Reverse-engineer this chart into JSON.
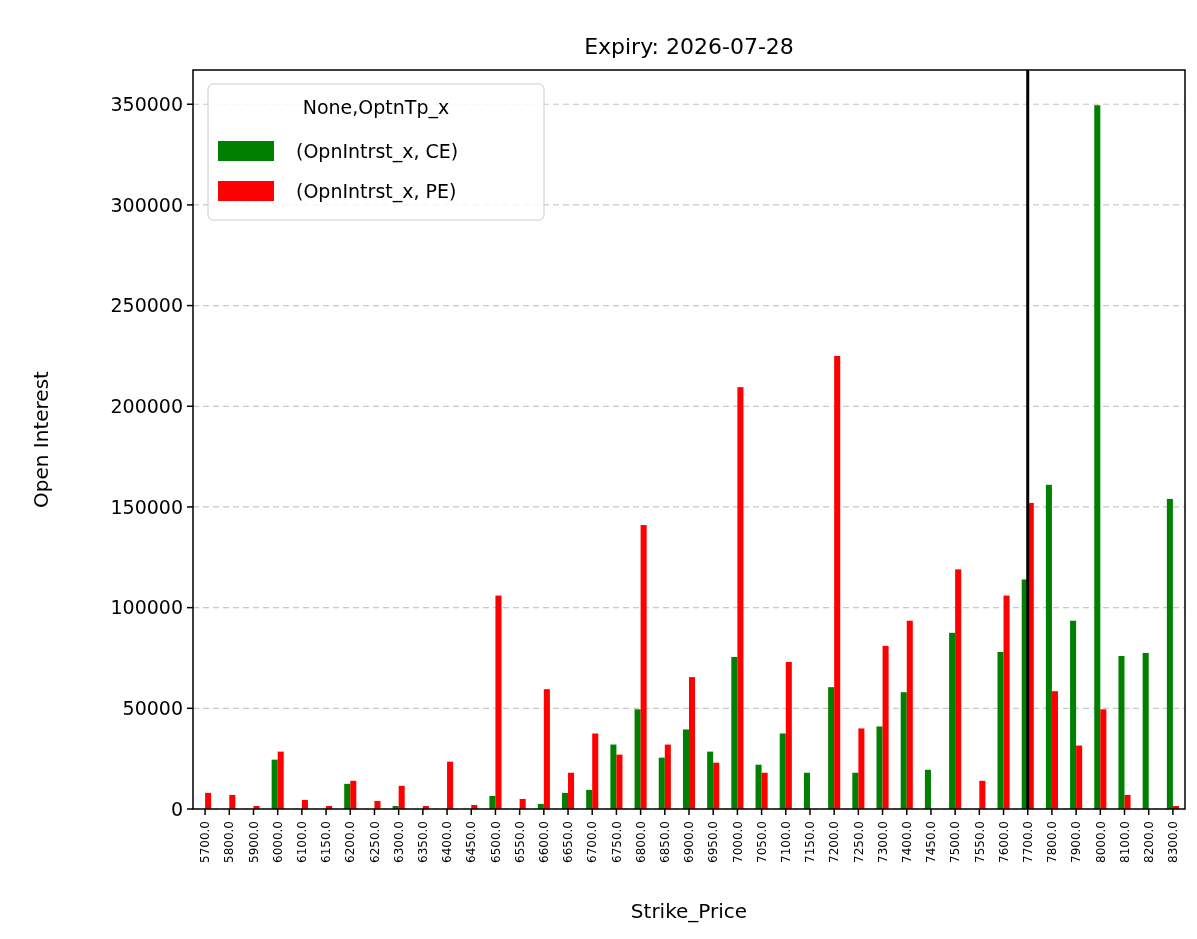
{
  "chart_data": {
    "type": "bar",
    "title": "Expiry: 2026-07-28",
    "xlabel": "Strike_Price",
    "ylabel": "Open Interest",
    "legend_title": "None,OptnTp_x",
    "legend": "top left",
    "grid": "y",
    "categories": [
      "5700.0",
      "5800.0",
      "5900.0",
      "6000.0",
      "6100.0",
      "6150.0",
      "6200.0",
      "6250.0",
      "6300.0",
      "6350.0",
      "6400.0",
      "6450.0",
      "6500.0",
      "6550.0",
      "6600.0",
      "6650.0",
      "6700.0",
      "6750.0",
      "6800.0",
      "6850.0",
      "6900.0",
      "6950.0",
      "7000.0",
      "7050.0",
      "7100.0",
      "7150.0",
      "7200.0",
      "7250.0",
      "7300.0",
      "7400.0",
      "7450.0",
      "7500.0",
      "7550.0",
      "7600.0",
      "7700.0",
      "7800.0",
      "7900.0",
      "8000.0",
      "8100.0",
      "8200.0",
      "8300.0"
    ],
    "series": [
      {
        "name": "(OpnIntrst_x, CE)",
        "color": "#008000",
        "values": [
          0,
          0,
          0,
          24500,
          0,
          0,
          12500,
          0,
          1500,
          0,
          null,
          0,
          6500,
          0,
          2500,
          8000,
          9500,
          32000,
          49500,
          25500,
          39500,
          28500,
          75500,
          22000,
          37500,
          18000,
          60500,
          18000,
          41000,
          58000,
          19500,
          87500,
          0,
          78000,
          114000,
          161000,
          93500,
          349500,
          76000,
          77500,
          154000
        ]
      },
      {
        "name": "(OpnIntrst_x, PE)",
        "color": "#ff0000",
        "values": [
          8000,
          7000,
          1500,
          28500,
          4500,
          1500,
          14000,
          4000,
          11500,
          1500,
          23500,
          2000,
          106000,
          5000,
          59500,
          18000,
          37500,
          27000,
          141000,
          32000,
          65500,
          23000,
          209500,
          18000,
          73000,
          0,
          225000,
          40000,
          81000,
          93500,
          0,
          119000,
          14000,
          106000,
          152000,
          58500,
          31500,
          49500,
          7000,
          0,
          1500
        ]
      }
    ],
    "ylim": [
      0,
      367000
    ],
    "yticks": [
      0,
      50000,
      100000,
      150000,
      200000,
      250000,
      300000,
      350000
    ],
    "ref_lines": [
      {
        "axis": "x",
        "value": "7700.0",
        "color": "#000000",
        "line_style": "solid"
      }
    ]
  }
}
